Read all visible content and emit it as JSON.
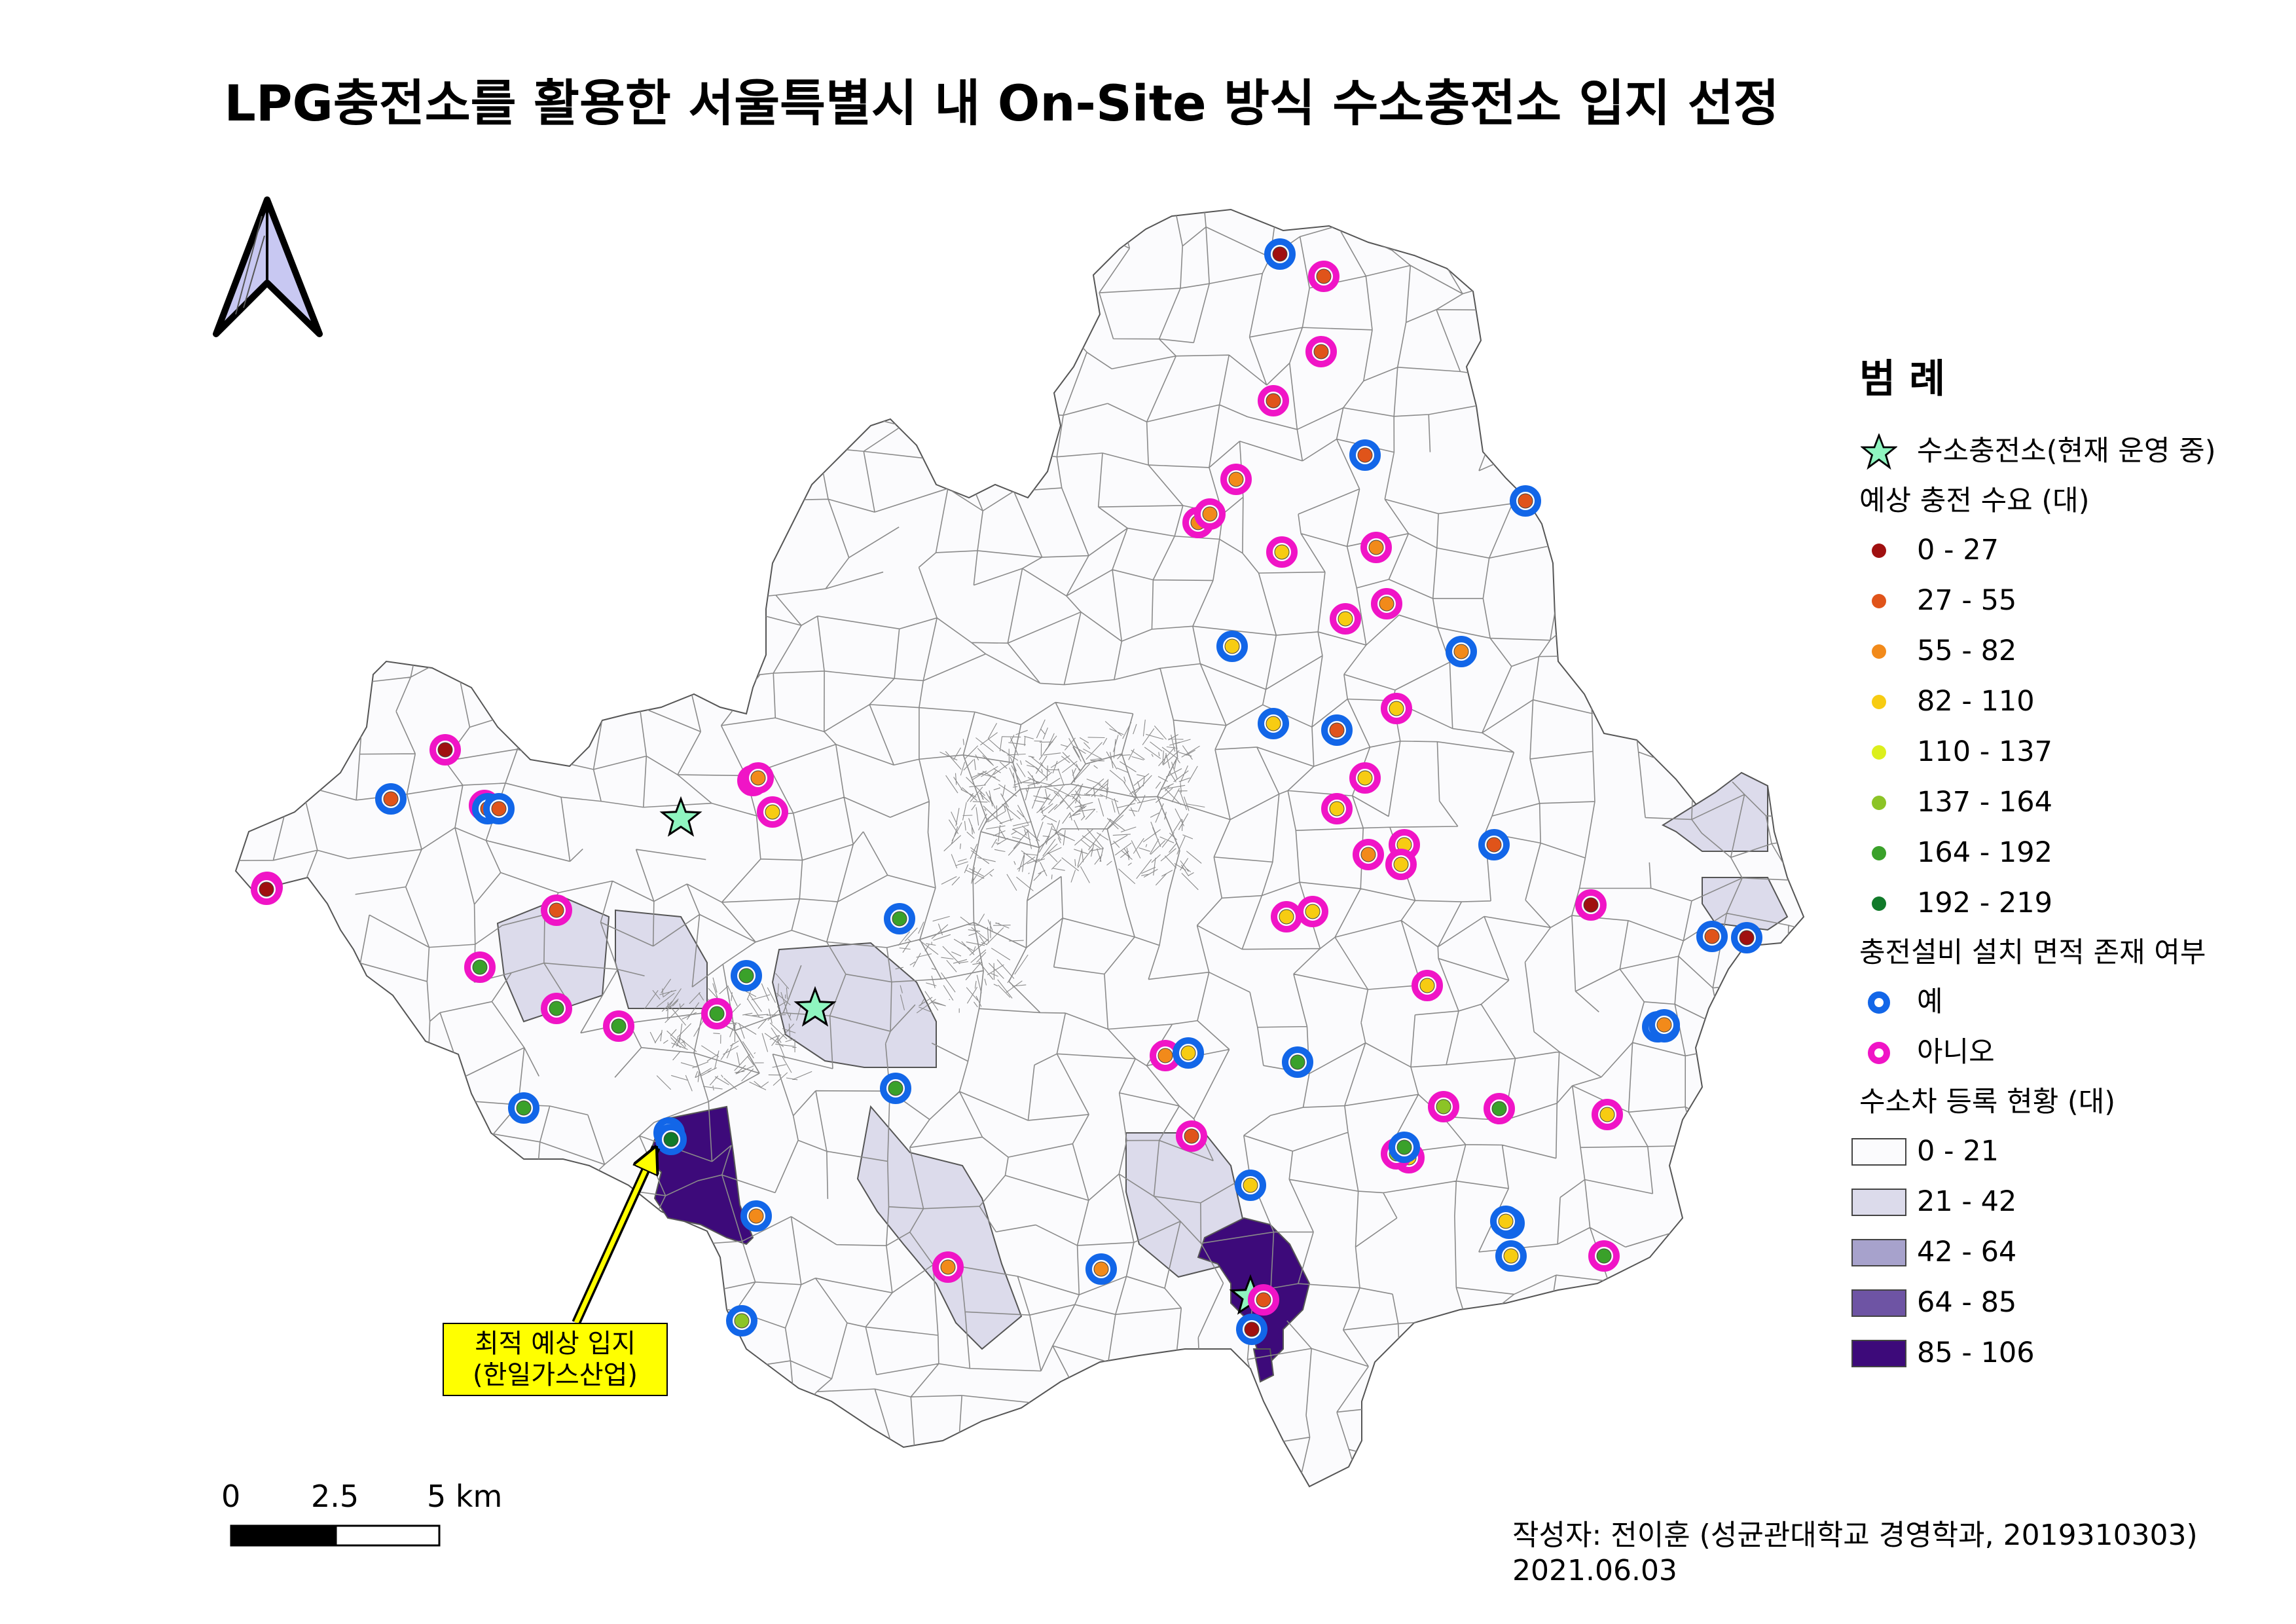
{
  "title": "LPG충전소를 활용한 서울특별시 내 On-Site 방식 수소충전소 입지 선정",
  "legend": {
    "title": "범 례",
    "star_label": "수소충전소(현재 운영 중)",
    "demand_title": "예상 충전 수요 (대)",
    "demand_classes": [
      {
        "label": "0 - 27",
        "color": "#a01010"
      },
      {
        "label": "27 - 55",
        "color": "#e0541a"
      },
      {
        "label": "55 - 82",
        "color": "#f28a1a"
      },
      {
        "label": "82 - 110",
        "color": "#f7cc12"
      },
      {
        "label": "110 - 137",
        "color": "#dcef1c"
      },
      {
        "label": "137 - 164",
        "color": "#8cc426"
      },
      {
        "label": "164 - 192",
        "color": "#3aa12a"
      },
      {
        "label": "192 - 219",
        "color": "#117a2a"
      }
    ],
    "area_title": "충전설비 설치 면적 존재 여부",
    "area_classes": [
      {
        "label": "예",
        "color": "#1266e8"
      },
      {
        "label": "아니오",
        "color": "#f014c6"
      }
    ],
    "fcev_title": "수소차 등록 현황 (대)",
    "fcev_classes": [
      {
        "label": "0 - 21",
        "color": "#fbfbfd"
      },
      {
        "label": "21 - 42",
        "color": "#dcdbeb"
      },
      {
        "label": "42 - 64",
        "color": "#a7a2cc"
      },
      {
        "label": "64 - 85",
        "color": "#6e54a4"
      },
      {
        "label": "85 - 106",
        "color": "#3d0a7a"
      }
    ]
  },
  "scale": {
    "labels": [
      "0",
      "2.5",
      "5 km"
    ]
  },
  "annotation": {
    "line1": "최적 예상 입지",
    "line2": "(한일가스산업)"
  },
  "author": {
    "line1": "작성자: 전이훈 (성균관대학교 경영학과, 2019310303)",
    "line2": "2021.06.03"
  },
  "stations": [
    {
      "area": "yes",
      "demand": 0
    },
    {
      "area": "no",
      "demand": 1
    },
    {
      "area": "no",
      "demand": 1
    },
    {
      "area": "no",
      "demand": 1
    },
    {
      "area": "yes",
      "demand": 1
    },
    {
      "area": "no",
      "demand": 2
    },
    {
      "area": "no",
      "demand": 2
    },
    {
      "area": "no",
      "demand": 2
    },
    {
      "area": "no",
      "demand": 3
    },
    {
      "area": "no",
      "demand": 2
    },
    {
      "area": "yes",
      "demand": 1
    },
    {
      "area": "no",
      "demand": 3
    },
    {
      "area": "no",
      "demand": 2
    },
    {
      "area": "yes",
      "demand": 3
    },
    {
      "area": "yes",
      "demand": 2
    },
    {
      "area": "no",
      "demand": 3
    },
    {
      "area": "yes",
      "demand": 3
    },
    {
      "area": "yes",
      "demand": 1
    },
    {
      "area": "no",
      "demand": 3
    },
    {
      "area": "no",
      "demand": 2
    },
    {
      "area": "no",
      "demand": 3
    },
    {
      "area": "no",
      "demand": 3
    },
    {
      "area": "no",
      "demand": 3
    },
    {
      "area": "no",
      "demand": 3
    },
    {
      "area": "no",
      "demand": 3
    },
    {
      "area": "no",
      "demand": 3
    },
    {
      "area": "no",
      "demand": 0
    },
    {
      "area": "yes",
      "demand": 0
    },
    {
      "area": "yes",
      "demand": 1
    },
    {
      "area": "yes",
      "demand": 1
    },
    {
      "area": "no",
      "demand": 0
    },
    {
      "area": "yes",
      "demand": 1
    },
    {
      "area": "no",
      "demand": 2
    },
    {
      "area": "no",
      "demand": 3
    },
    {
      "area": "yes",
      "demand": 1
    },
    {
      "area": "yes",
      "demand": 1
    },
    {
      "area": "no",
      "demand": 1
    },
    {
      "area": "no",
      "demand": 2
    },
    {
      "area": "no",
      "demand": 2
    },
    {
      "area": "yes",
      "demand": 6
    },
    {
      "area": "no",
      "demand": 6
    },
    {
      "area": "no",
      "demand": 6
    },
    {
      "area": "yes",
      "demand": 6
    },
    {
      "area": "yes",
      "demand": 6
    },
    {
      "area": "yes",
      "demand": 6
    },
    {
      "area": "yes",
      "demand": 7
    },
    {
      "area": "no",
      "demand": 0
    },
    {
      "area": "no",
      "demand": 6
    },
    {
      "area": "no",
      "demand": 0
    },
    {
      "area": "yes",
      "demand": 6
    },
    {
      "area": "no",
      "demand": 6
    },
    {
      "area": "yes",
      "demand": 6
    },
    {
      "area": "no",
      "demand": 2
    },
    {
      "area": "yes",
      "demand": 3
    },
    {
      "area": "yes",
      "demand": 3
    },
    {
      "area": "yes",
      "demand": 2
    },
    {
      "area": "no",
      "demand": 2
    },
    {
      "area": "yes",
      "demand": 2
    },
    {
      "area": "yes",
      "demand": 0
    },
    {
      "area": "no",
      "demand": 1
    },
    {
      "area": "no",
      "demand": 3
    },
    {
      "area": "yes",
      "demand": 5
    },
    {
      "area": "no",
      "demand": 6
    },
    {
      "area": "no",
      "demand": 6
    },
    {
      "area": "no",
      "demand": 5
    },
    {
      "area": "no",
      "demand": 5
    },
    {
      "area": "yes",
      "demand": 6
    },
    {
      "area": "yes",
      "demand": 3
    },
    {
      "area": "no",
      "demand": 3
    },
    {
      "area": "yes",
      "demand": 0
    },
    {
      "area": "yes",
      "demand": 2
    },
    {
      "area": "yes",
      "demand": 3
    },
    {
      "area": "yes",
      "demand": 1
    },
    {
      "area": "no",
      "demand": 1
    },
    {
      "area": "yes",
      "demand": 5
    }
  ]
}
